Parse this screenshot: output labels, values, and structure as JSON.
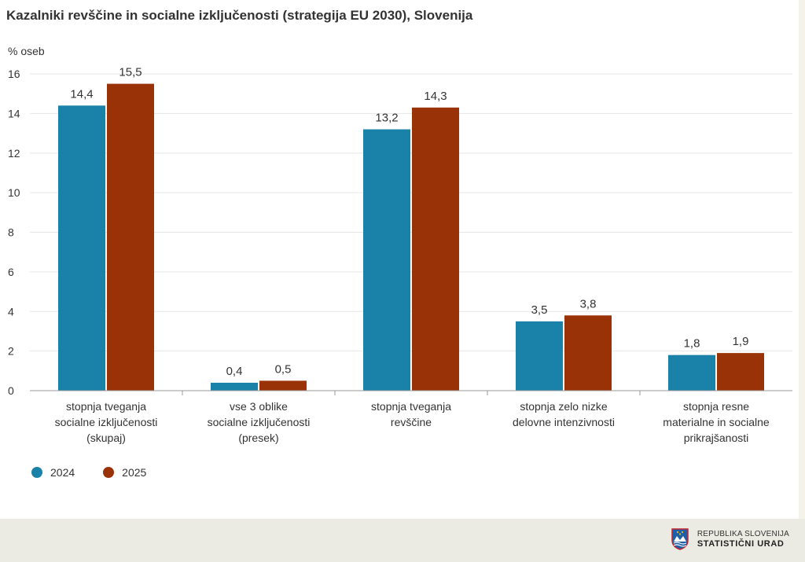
{
  "colors": {
    "series_2024": "#1a81a8",
    "series_2025": "#9a3207",
    "grid": "#e6e6e6",
    "axis": "#999999"
  },
  "chart_data": {
    "type": "bar",
    "title": "Kazalniki revščine in socialne izključenosti (strategija EU 2030), Slovenija",
    "ylabel": "% oseb",
    "xlabel": "",
    "ylim": [
      0,
      16
    ],
    "yticks": [
      0,
      2,
      4,
      6,
      8,
      10,
      12,
      14,
      16
    ],
    "grid": true,
    "legend_position": "bottom-left",
    "categories": [
      [
        "stopnja tveganja",
        "socialne izključenosti",
        "(skupaj)"
      ],
      [
        "vse 3 oblike",
        "socialne izključenosti",
        "(presek)"
      ],
      [
        "stopnja tveganja",
        "revščine"
      ],
      [
        "stopnja zelo nizke",
        "delovne intenzivnosti"
      ],
      [
        "stopnja resne",
        "materialne in socialne",
        "prikrajšanosti"
      ]
    ],
    "series": [
      {
        "name": "2024",
        "values": [
          14.4,
          0.4,
          13.2,
          3.5,
          1.8
        ],
        "labels": [
          "14,4",
          "0,4",
          "13,2",
          "3,5",
          "1,8"
        ]
      },
      {
        "name": "2025",
        "values": [
          15.5,
          0.5,
          14.3,
          3.8,
          1.9
        ],
        "labels": [
          "15,5",
          "0,5",
          "14,3",
          "3,8",
          "1,9"
        ]
      }
    ]
  },
  "logo": {
    "line1": "REPUBLIKA SLOVENIJA",
    "line2": "STATISTIČNI URAD",
    "icon": "slovenia-coat-of-arms-icon"
  }
}
